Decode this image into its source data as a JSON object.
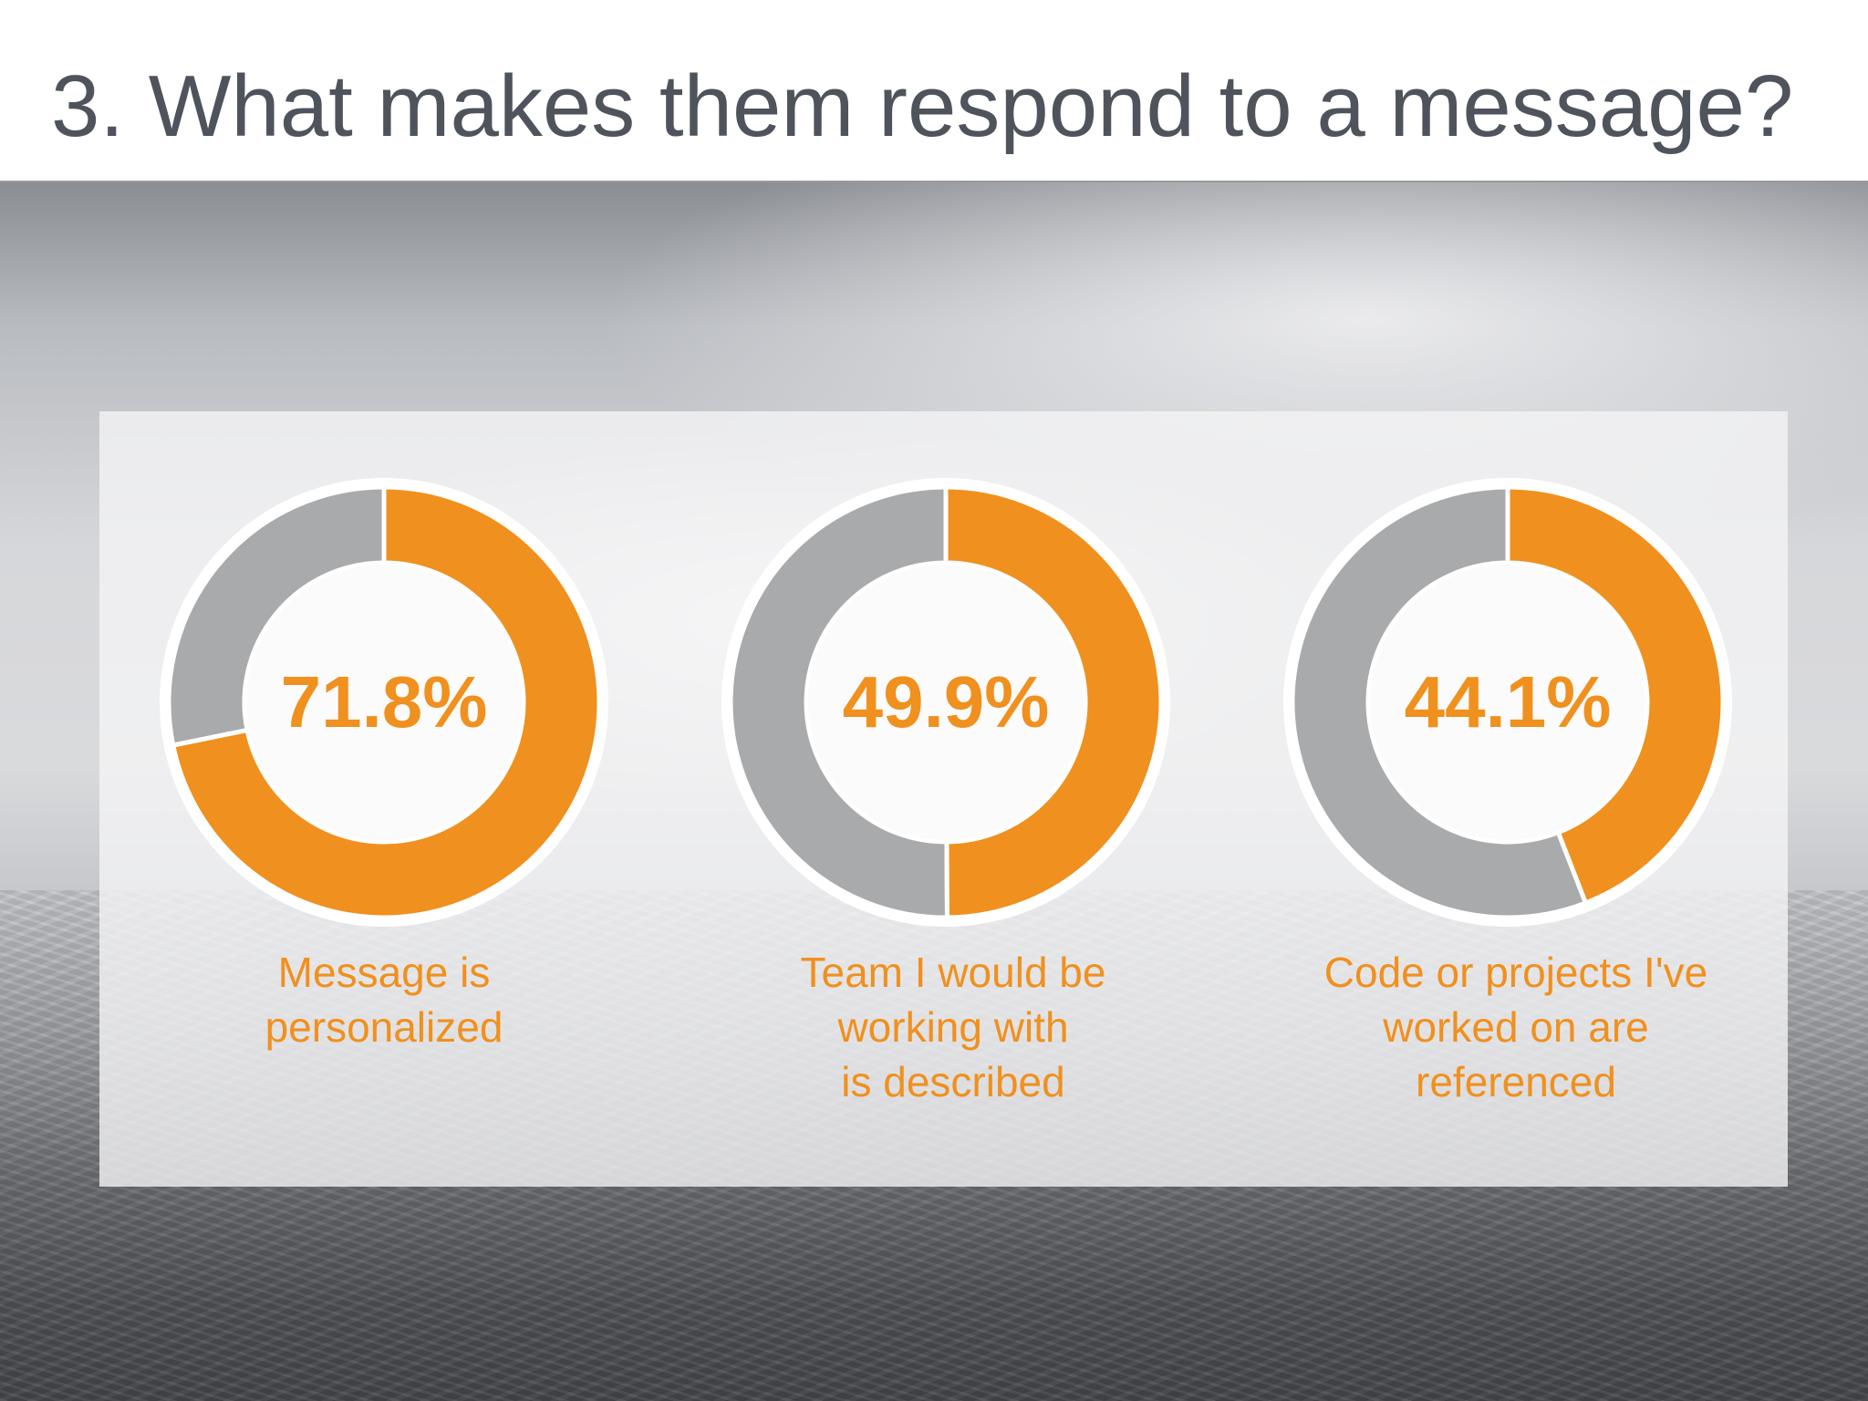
{
  "slide": {
    "title": "3. What makes them respond to a message?"
  },
  "colors": {
    "accent": "#f0901e",
    "remainder": "#a9aaac",
    "title": "#4f545c",
    "ring_border": "#ffffff"
  },
  "chart_data": {
    "type": "pie",
    "variant": "donut",
    "charts": [
      {
        "value": 71.8,
        "label_text": "71.8%",
        "caption_lines": [
          "Message is",
          "personalized"
        ]
      },
      {
        "value": 49.9,
        "label_text": "49.9%",
        "caption_lines": [
          "Team I would be",
          "working with",
          "is described"
        ]
      },
      {
        "value": 44.1,
        "label_text": "44.1%",
        "caption_lines": [
          "Code or projects I've",
          "worked on are",
          "referenced"
        ]
      }
    ]
  }
}
